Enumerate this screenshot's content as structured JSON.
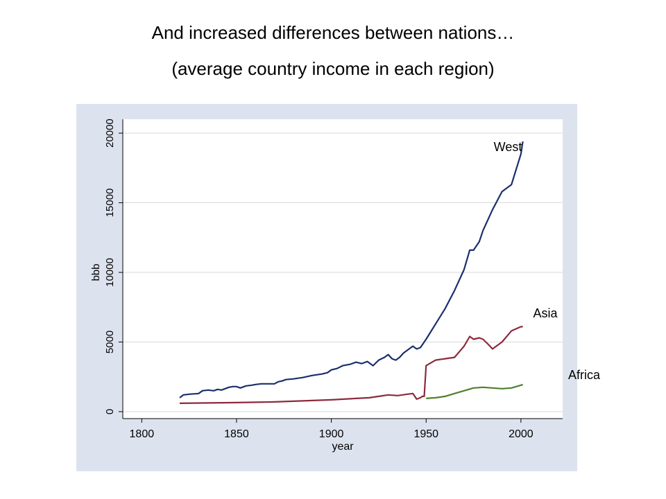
{
  "slide": {
    "title": "And increased differences between nations…",
    "subtitle": "(average country income in each region)"
  },
  "chart_data": {
    "type": "line",
    "xlabel": "year",
    "ylabel": "bbb",
    "xlim": [
      1790,
      2022
    ],
    "ylim": [
      -500,
      21000
    ],
    "xticks": [
      1800,
      1850,
      1900,
      1950,
      2000
    ],
    "yticks": [
      0,
      5000,
      10000,
      15000,
      20000
    ],
    "grid": true,
    "legend": "none",
    "colors": {
      "plot_region": "#dde3ee",
      "plot_area": "#ffffff",
      "grid": "#d9d9d9"
    },
    "series": [
      {
        "name": "West",
        "color": "#1a2f6b",
        "x": [
          1820,
          1822,
          1825,
          1830,
          1832,
          1835,
          1838,
          1840,
          1842,
          1844,
          1846,
          1848,
          1850,
          1852,
          1855,
          1858,
          1860,
          1863,
          1866,
          1870,
          1872,
          1874,
          1876,
          1880,
          1885,
          1890,
          1895,
          1898,
          1900,
          1903,
          1906,
          1910,
          1913,
          1916,
          1919,
          1922,
          1925,
          1928,
          1930,
          1932,
          1934,
          1936,
          1938,
          1940,
          1943,
          1945,
          1947,
          1950,
          1955,
          1960,
          1965,
          1970,
          1973,
          1975,
          1978,
          1980,
          1985,
          1990,
          1995,
          2000,
          2001
        ],
        "y": [
          1000,
          1200,
          1250,
          1300,
          1500,
          1550,
          1500,
          1600,
          1550,
          1650,
          1750,
          1800,
          1800,
          1700,
          1850,
          1900,
          1950,
          2000,
          2000,
          2000,
          2150,
          2200,
          2300,
          2350,
          2450,
          2600,
          2700,
          2800,
          3000,
          3100,
          3300,
          3400,
          3550,
          3450,
          3600,
          3300,
          3700,
          3900,
          4100,
          3800,
          3700,
          3900,
          4200,
          4400,
          4700,
          4500,
          4600,
          5200,
          6300,
          7400,
          8700,
          10200,
          11600,
          11600,
          12200,
          13000,
          14500,
          15800,
          16300,
          18500,
          19400
        ]
      },
      {
        "name": "Asia",
        "color": "#8b2a3a",
        "x": [
          1820,
          1850,
          1870,
          1880,
          1900,
          1913,
          1920,
          1925,
          1930,
          1935,
          1940,
          1943,
          1945,
          1947,
          1948,
          1949,
          1950,
          1955,
          1960,
          1965,
          1970,
          1973,
          1975,
          1978,
          1980,
          1983,
          1985,
          1990,
          1995,
          2000,
          2001
        ],
        "y": [
          600,
          650,
          700,
          750,
          850,
          950,
          1000,
          1100,
          1200,
          1150,
          1250,
          1300,
          900,
          1000,
          1100,
          1100,
          3300,
          3700,
          3800,
          3900,
          4700,
          5400,
          5200,
          5300,
          5200,
          4800,
          4500,
          5000,
          5800,
          6100,
          6100
        ]
      },
      {
        "name": "Africa",
        "color": "#4f7f2a",
        "x": [
          1950,
          1955,
          1960,
          1965,
          1970,
          1975,
          1980,
          1985,
          1990,
          1995,
          2000,
          2001
        ],
        "y": [
          950,
          1000,
          1100,
          1300,
          1500,
          1700,
          1750,
          1700,
          1650,
          1700,
          1900,
          1950
        ]
      }
    ],
    "annotations": [
      "West",
      "Asia",
      "Africa"
    ]
  }
}
